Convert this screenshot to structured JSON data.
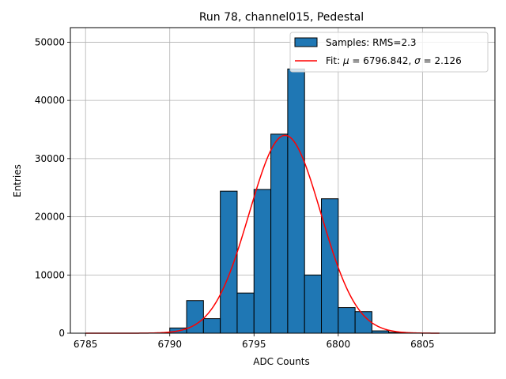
{
  "chart_data": {
    "type": "bar",
    "title": "Run 78, channel015, Pedestal",
    "xlabel": "ADC Counts",
    "ylabel": "Entries",
    "xlim": [
      6784.1,
      6809.3
    ],
    "ylim": [
      0,
      52500
    ],
    "xticks": [
      6785,
      6790,
      6795,
      6800,
      6805
    ],
    "yticks": [
      0,
      10000,
      20000,
      30000,
      40000,
      50000
    ],
    "grid": true,
    "legend_position": "top-right",
    "colors": {
      "bars": "#1f77b4",
      "bar_edge": "#000000",
      "fit": "#ff0000",
      "grid": "#b0b0b0"
    },
    "histogram": {
      "name": "Samples: RMS=2.3",
      "bin_width": 1,
      "bins": [
        {
          "x0": 6790,
          "value": 900
        },
        {
          "x0": 6791,
          "value": 5600
        },
        {
          "x0": 6792,
          "value": 2500
        },
        {
          "x0": 6793,
          "value": 24400
        },
        {
          "x0": 6794,
          "value": 6900
        },
        {
          "x0": 6795,
          "value": 24700
        },
        {
          "x0": 6796,
          "value": 34200
        },
        {
          "x0": 6797,
          "value": 45400
        },
        {
          "x0": 6798,
          "value": 10000
        },
        {
          "x0": 6799,
          "value": 23100
        },
        {
          "x0": 6800,
          "value": 4400
        },
        {
          "x0": 6801,
          "value": 3700
        },
        {
          "x0": 6802,
          "value": 400
        },
        {
          "x0": 6803,
          "value": 150
        }
      ]
    },
    "fit": {
      "name": "Fit: μ = 6796.842, σ = 2.126",
      "label_prefix": "Fit: ",
      "mu_symbol": "μ",
      "mu_text": " = 6796.842, ",
      "sigma_symbol": "σ",
      "sigma_text": " = 2.126",
      "mu": 6796.842,
      "sigma": 2.126,
      "amplitude": 34000,
      "x_range": [
        6785,
        6806
      ]
    }
  }
}
